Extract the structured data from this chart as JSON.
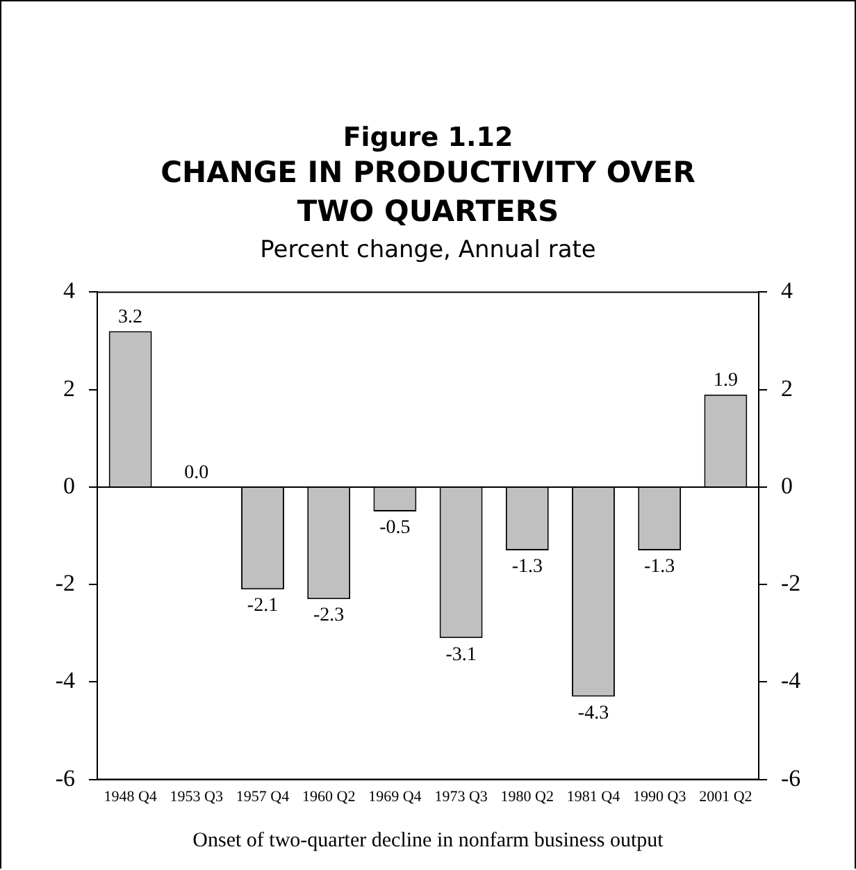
{
  "chart_data": {
    "type": "bar",
    "title": "CHANGE IN PRODUCTIVITY OVER TWO QUARTERS",
    "subtitle": "Percent change, Annual rate",
    "annotations": [
      "Figure 1.12"
    ],
    "xlabel": "Onset of two-quarter decline in nonfarm business output",
    "categories": [
      "1948 Q4",
      "1953 Q3",
      "1957 Q4",
      "1960 Q2",
      "1969 Q4",
      "1973 Q3",
      "1980 Q2",
      "1981 Q4",
      "1990 Q3",
      "2001 Q2"
    ],
    "values": [
      3.2,
      0.0,
      -2.1,
      -2.3,
      -0.5,
      -3.1,
      -1.3,
      -4.3,
      -1.3,
      1.9
    ],
    "value_labels": [
      "3.2",
      "0.0",
      "-2.1",
      "-2.3",
      "-0.5",
      "-3.1",
      "-1.3",
      "-4.3",
      "-1.3",
      "1.9"
    ],
    "color": "#c0c0c0",
    "grid": false,
    "legend": false,
    "ylim": [
      -6,
      4
    ],
    "yticks": [
      -6,
      -4,
      -2,
      0,
      2,
      4
    ],
    "y2lim": [
      -6,
      4
    ],
    "y2ticks": [
      -6,
      -4,
      -2,
      0,
      2,
      4
    ],
    "ref_lines": [
      {
        "axis": "y",
        "value": 0,
        "color": "#000000"
      }
    ]
  }
}
